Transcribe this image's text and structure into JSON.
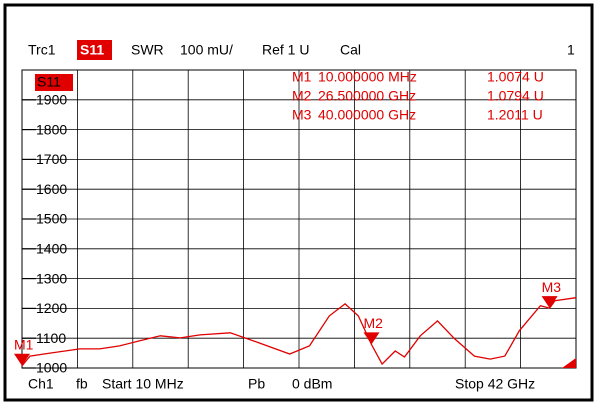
{
  "chart_data": {
    "type": "line",
    "header": [
      "Trc1",
      "S11",
      "SWR",
      "100 mU/",
      "Ref 1 U",
      "Cal",
      "1"
    ],
    "footer": [
      "Ch1",
      "fb",
      "Start 10 MHz",
      "Pb",
      "0 dBm",
      "Stop 42 GHz"
    ],
    "trace_label": "S11",
    "x": [
      0.01,
      0.62,
      2.13,
      4.4,
      5.9,
      7.4,
      8.9,
      10.5,
      12.0,
      13.5,
      15.8,
      18.0,
      20.3,
      21.8,
      23.3,
      24.5,
      25.5,
      26.5,
      27.3,
      28.3,
      29.0,
      30.2,
      31.5,
      32.8,
      34.3,
      35.5,
      36.6,
      37.7,
      39.3,
      40.0,
      40.4,
      42
    ],
    "series": [
      {
        "name": "S11",
        "color": "#e00000",
        "values": [
          1007,
          1040,
          1050,
          1064,
          1064,
          1074,
          1091,
          1108,
          1101,
          1111,
          1118,
          1084,
          1047,
          1074,
          1175,
          1215,
          1175,
          1079,
          1013,
          1057,
          1037,
          1108,
          1158,
          1098,
          1040,
          1030,
          1040,
          1125,
          1209,
          1201,
          1226,
          1236
        ]
      }
    ],
    "xlim": [
      0.01,
      42
    ],
    "ylim": [
      1000,
      2000
    ],
    "yticks": [
      1000,
      1100,
      1200,
      1300,
      1400,
      1500,
      1600,
      1700,
      1800,
      1900
    ],
    "grid": true,
    "markers": [
      {
        "name": "M1",
        "x": 0.01,
        "x_label": "10.000000 MHz",
        "y": 1007.4,
        "y_label": "1.0074  U"
      },
      {
        "name": "M2",
        "x": 26.5,
        "x_label": "26.500000 GHz",
        "y": 1079.4,
        "y_label": "1.0794  U"
      },
      {
        "name": "M3",
        "x": 40,
        "x_label": "40.000000 GHz",
        "y": 1201.1,
        "y_label": "1.2011  U"
      }
    ]
  }
}
